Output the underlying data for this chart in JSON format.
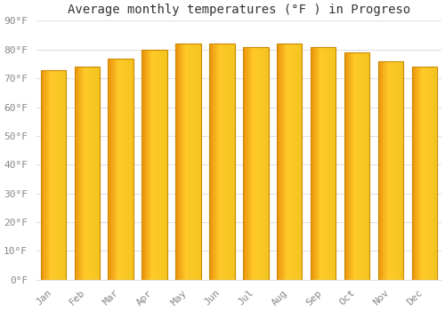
{
  "title": "Average monthly temperatures (°F ) in Progreso",
  "categories": [
    "Jan",
    "Feb",
    "Mar",
    "Apr",
    "May",
    "Jun",
    "Jul",
    "Aug",
    "Sep",
    "Oct",
    "Nov",
    "Dec"
  ],
  "values": [
    73,
    74,
    77,
    80,
    82,
    82,
    81,
    82,
    81,
    79,
    76,
    74
  ],
  "bar_color_left": "#E8920A",
  "bar_color_center": "#FFCA28",
  "bar_edge_color": "#CC8800",
  "background_color": "#FFFFFF",
  "grid_color": "#E0E0E0",
  "ylim": [
    0,
    90
  ],
  "yticks": [
    0,
    10,
    20,
    30,
    40,
    50,
    60,
    70,
    80,
    90
  ],
  "title_fontsize": 10,
  "tick_fontsize": 8,
  "tick_color": "#888888",
  "font_family": "monospace",
  "bar_width": 0.75
}
